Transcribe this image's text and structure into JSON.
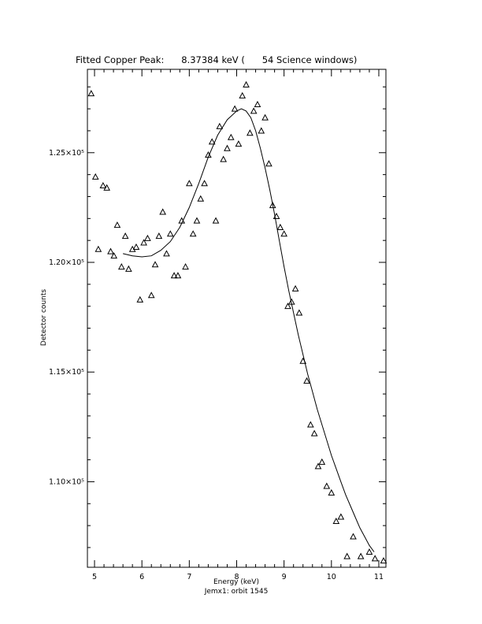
{
  "chart_data": {
    "type": "scatter",
    "title": "Fitted Copper Peak:      8.37384 keV (      54 Science windows)",
    "xlabel": "Energy (keV)",
    "ylabel": "Detector counts",
    "footer": "Jemx1: orbit 1545",
    "xlim": [
      4.85,
      11.15
    ],
    "ylim": [
      106100,
      128800
    ],
    "x_ticks": [
      5,
      6,
      7,
      8,
      9,
      10,
      11
    ],
    "x_tick_labels": [
      "5",
      "6",
      "7",
      "8",
      "9",
      "10",
      "11"
    ],
    "y_ticks": [
      110000,
      115000,
      120000,
      125000
    ],
    "y_tick_labels": [
      "1.10×10⁵",
      "1.15×10⁵",
      "1.20×10⁵",
      "1.25×10⁵"
    ],
    "grid": false,
    "legend": "none",
    "series": [
      {
        "marker": "triangle",
        "x": [
          4.93,
          5.02,
          5.08,
          5.18,
          5.26,
          5.34,
          5.41,
          5.48,
          5.57,
          5.65,
          5.72,
          5.8,
          5.88,
          5.96,
          6.04,
          6.12,
          6.2,
          6.28,
          6.36,
          6.44,
          6.52,
          6.6,
          6.68,
          6.76,
          6.84,
          6.92,
          7.0,
          7.08,
          7.16,
          7.24,
          7.32,
          7.4,
          7.48,
          7.56,
          7.64,
          7.72,
          7.8,
          7.88,
          7.96,
          8.04,
          8.12,
          8.2,
          8.28,
          8.36,
          8.44,
          8.52,
          8.6,
          8.68,
          8.76,
          8.84,
          8.92,
          9.0,
          9.08,
          9.16,
          9.24,
          9.32,
          9.4,
          9.48,
          9.56,
          9.64,
          9.72,
          9.8,
          9.9,
          10.0,
          10.1,
          10.2,
          10.33,
          10.46,
          10.62,
          10.8,
          10.92,
          11.1
        ],
        "y": [
          127700,
          123900,
          120600,
          123500,
          123400,
          120500,
          120300,
          121700,
          119800,
          121200,
          119700,
          120600,
          120700,
          118300,
          120900,
          121100,
          118500,
          119900,
          121200,
          122300,
          120400,
          121300,
          119400,
          119400,
          121900,
          119800,
          123600,
          121300,
          121900,
          122900,
          123600,
          124900,
          125500,
          121900,
          126200,
          124700,
          125200,
          125700,
          127000,
          125400,
          127600,
          128100,
          125900,
          126900,
          127200,
          126000,
          126600,
          124500,
          122600,
          122100,
          121600,
          121300,
          118000,
          118200,
          118800,
          117700,
          115500,
          114600,
          112600,
          112200,
          110700,
          110900,
          109800,
          109500,
          108200,
          108400,
          106600,
          107500,
          106600,
          106800,
          106500,
          106400
        ]
      },
      {
        "type": "line",
        "name": "",
        "x": [
          5.6,
          5.8,
          6.0,
          6.2,
          6.4,
          6.6,
          6.8,
          7.0,
          7.2,
          7.4,
          7.6,
          7.8,
          8.0,
          8.1,
          8.2,
          8.3,
          8.4,
          8.5,
          8.6,
          8.7,
          8.8,
          8.9,
          9.0,
          9.1,
          9.2,
          9.3,
          9.4,
          9.5,
          9.6,
          9.7,
          9.8,
          9.9,
          10.0,
          10.1,
          10.2,
          10.3,
          10.4,
          10.5,
          10.6,
          10.7,
          10.8,
          10.9
        ],
        "y": [
          120400,
          120300,
          120250,
          120300,
          120550,
          120950,
          121600,
          122500,
          123600,
          124800,
          125800,
          126500,
          126900,
          127000,
          126900,
          126600,
          126000,
          125200,
          124300,
          123300,
          122200,
          121000,
          119800,
          118700,
          117700,
          116700,
          115800,
          114900,
          114100,
          113300,
          112600,
          111900,
          111200,
          110600,
          110000,
          109400,
          108900,
          108400,
          107900,
          107500,
          107100,
          106800
        ]
      }
    ]
  }
}
